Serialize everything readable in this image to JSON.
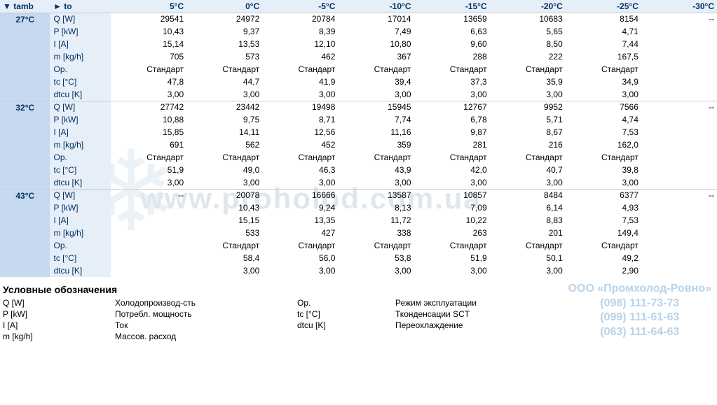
{
  "header": {
    "tamb": "▼ tamb",
    "to": "► to",
    "cols": [
      "5°C",
      "0°C",
      "-5°C",
      "-10°C",
      "-15°C",
      "-20°C",
      "-25°C",
      "-30°C"
    ]
  },
  "params": [
    "Q [W]",
    "P [kW]",
    "I [A]",
    "m [kg/h]",
    "Op.",
    "tc [°C]",
    "dtcu [K]"
  ],
  "blocks": [
    {
      "tamb": "27°C",
      "rows": [
        [
          "29541",
          "24972",
          "20784",
          "17014",
          "13659",
          "10683",
          "8154",
          "--"
        ],
        [
          "10,43",
          "9,37",
          "8,39",
          "7,49",
          "6,63",
          "5,65",
          "4,71",
          ""
        ],
        [
          "15,14",
          "13,53",
          "12,10",
          "10,80",
          "9,60",
          "8,50",
          "7,44",
          ""
        ],
        [
          "705",
          "573",
          "462",
          "367",
          "288",
          "222",
          "167,5",
          ""
        ],
        [
          "Стандарт",
          "Стандарт",
          "Стандарт",
          "Стандарт",
          "Стандарт",
          "Стандарт",
          "Стандарт",
          ""
        ],
        [
          "47,8",
          "44,7",
          "41,9",
          "39,4",
          "37,3",
          "35,9",
          "34,9",
          ""
        ],
        [
          "3,00",
          "3,00",
          "3,00",
          "3,00",
          "3,00",
          "3,00",
          "3,00",
          ""
        ]
      ]
    },
    {
      "tamb": "32°C",
      "rows": [
        [
          "27742",
          "23442",
          "19498",
          "15945",
          "12767",
          "9952",
          "7566",
          "--"
        ],
        [
          "10,88",
          "9,75",
          "8,71",
          "7,74",
          "6,78",
          "5,71",
          "4,74",
          ""
        ],
        [
          "15,85",
          "14,11",
          "12,56",
          "11,16",
          "9,87",
          "8,67",
          "7,53",
          ""
        ],
        [
          "691",
          "562",
          "452",
          "359",
          "281",
          "216",
          "162,0",
          ""
        ],
        [
          "Стандарт",
          "Стандарт",
          "Стандарт",
          "Стандарт",
          "Стандарт",
          "Стандарт",
          "Стандарт",
          ""
        ],
        [
          "51,9",
          "49,0",
          "46,3",
          "43,9",
          "42,0",
          "40,7",
          "39,8",
          ""
        ],
        [
          "3,00",
          "3,00",
          "3,00",
          "3,00",
          "3,00",
          "3,00",
          "3,00",
          ""
        ]
      ]
    },
    {
      "tamb": "43°C",
      "rows": [
        [
          "--",
          "20078",
          "16666",
          "13587",
          "10857",
          "8484",
          "6377",
          "--"
        ],
        [
          "",
          "10,43",
          "9,24",
          "8,13",
          "7,09",
          "6,14",
          "4,93",
          ""
        ],
        [
          "",
          "15,15",
          "13,35",
          "11,72",
          "10,22",
          "8,83",
          "7,53",
          ""
        ],
        [
          "",
          "533",
          "427",
          "338",
          "263",
          "201",
          "149,4",
          ""
        ],
        [
          "",
          "Стандарт",
          "Стандарт",
          "Стандарт",
          "Стандарт",
          "Стандарт",
          "Стандарт",
          ""
        ],
        [
          "",
          "58,4",
          "56,0",
          "53,8",
          "51,9",
          "50,1",
          "49,2",
          ""
        ],
        [
          "",
          "3,00",
          "3,00",
          "3,00",
          "3,00",
          "3,00",
          "2,90",
          ""
        ]
      ]
    }
  ],
  "legend": {
    "title": "Условные обозначения",
    "items": [
      [
        "Q [W]",
        "Холодопроизвод-сть",
        "Op.",
        "Режим эксплуатации"
      ],
      [
        "P [kW]",
        "Потребл. мощность",
        "tc [°C]",
        "Тконденсации SCT"
      ],
      [
        "I [A]",
        "Ток",
        "dtcu [K]",
        "Переохлаждение"
      ],
      [
        "m [kg/h]",
        "Массов. расход",
        "",
        ""
      ]
    ]
  },
  "watermark": "www.proholod.com.ua",
  "snowflake": "❄",
  "contact": {
    "name": "ООО «Промхолод-Ровно»",
    "phones": [
      "(098) 111-73-73",
      "(099) 111-61-63",
      "(063) 111-64-63"
    ]
  }
}
